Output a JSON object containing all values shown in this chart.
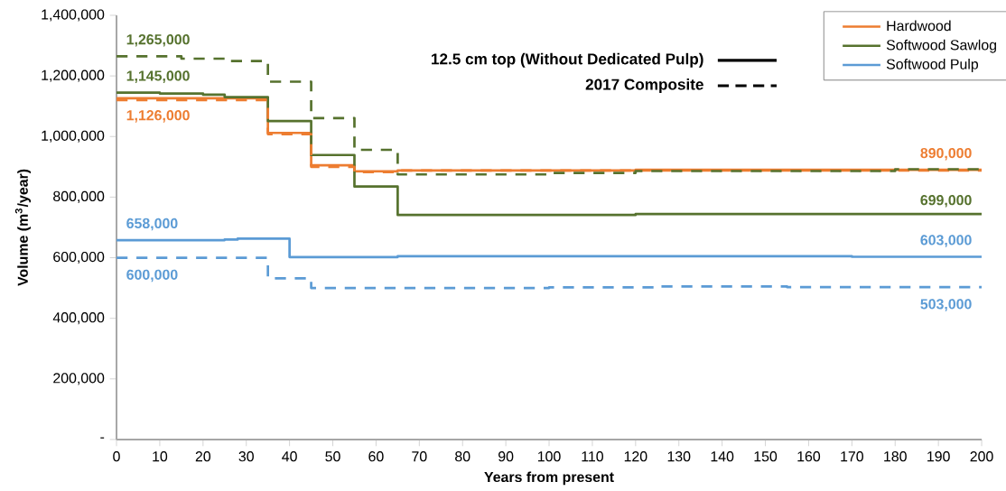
{
  "chart_data": {
    "type": "step",
    "xlabel": "Years from present",
    "ylabel": "Volume (m$^{3}$/year)",
    "xlim": [
      0,
      200
    ],
    "xticks": [
      0,
      10,
      20,
      30,
      40,
      50,
      60,
      70,
      80,
      90,
      100,
      110,
      120,
      130,
      140,
      150,
      160,
      170,
      180,
      190,
      200
    ],
    "ylim": [
      0,
      1400000
    ],
    "yticks": [
      {
        "value": 0,
        "label": "-"
      },
      {
        "value": 200000,
        "label": "200,000"
      },
      {
        "value": 400000,
        "label": "400,000"
      },
      {
        "value": 600000,
        "label": "600,000"
      },
      {
        "value": 800000,
        "label": "800,000"
      },
      {
        "value": 1000000,
        "label": "1,000,000"
      },
      {
        "value": 1200000,
        "label": "1,200,000"
      },
      {
        "value": 1400000,
        "label": "1,400,000"
      }
    ],
    "grid": false,
    "legend": "top right",
    "marker": "none",
    "series": [
      {
        "name": "Hardwood",
        "color": "#ed7d31",
        "line_style": "solid",
        "x": [
          0,
          35,
          45,
          55,
          65,
          120,
          200
        ],
        "values": [
          1126000,
          1012000,
          905000,
          885000,
          888000,
          890000,
          890000
        ],
        "value_labels": [
          "1,126,000",
          null,
          null,
          null,
          null,
          null,
          "890,000"
        ]
      },
      {
        "name": "Softwood Sawlog",
        "color": "#56722e",
        "line_style": "solid",
        "x": [
          0,
          10,
          20,
          25,
          35,
          45,
          55,
          65,
          120,
          200
        ],
        "values": [
          1145000,
          1142000,
          1138000,
          1130000,
          1051000,
          939000,
          835000,
          741000,
          744000,
          744000
        ],
        "value_labels": [
          "1,145,000",
          null,
          null,
          null,
          null,
          null,
          null,
          null,
          null,
          null
        ]
      },
      {
        "name": "Softwood Pulp",
        "color": "#5b9bd5",
        "line_style": "solid",
        "x": [
          0,
          25,
          28,
          40,
          65,
          170,
          200
        ],
        "values": [
          658000,
          660000,
          663000,
          602000,
          605000,
          603000,
          603000
        ],
        "value_labels": [
          "658,000",
          null,
          null,
          null,
          null,
          null,
          "603,000"
        ]
      },
      {
        "color": "#ed7d31",
        "line_style": "dashed",
        "x": [
          0,
          35,
          45,
          55,
          65,
          200
        ],
        "values": [
          1120000,
          1008000,
          900000,
          883000,
          888000,
          888000
        ]
      },
      {
        "color": "#56722e",
        "line_style": "dashed",
        "x": [
          0,
          15,
          25,
          35,
          45,
          55,
          65,
          100,
          120,
          180,
          200
        ],
        "values": [
          1265000,
          1257000,
          1249000,
          1181000,
          1061000,
          956000,
          875000,
          880000,
          886000,
          892000,
          892000
        ],
        "value_labels": [
          "1,265,000",
          null,
          null,
          null,
          null,
          null,
          null,
          null,
          null,
          null,
          null
        ]
      },
      {
        "color": "#5b9bd5",
        "line_style": "dashed",
        "x": [
          0,
          35,
          45,
          100,
          125,
          155,
          200
        ],
        "values": [
          600000,
          532000,
          500000,
          502000,
          505000,
          503000,
          503000
        ],
        "value_labels": [
          "600,000",
          null,
          null,
          null,
          null,
          null,
          "503,000"
        ]
      }
    ],
    "annotations": [
      "12.5 cm top (Without Dedicated Pulp)",
      "2017 Composite",
      "699,000"
    ]
  }
}
